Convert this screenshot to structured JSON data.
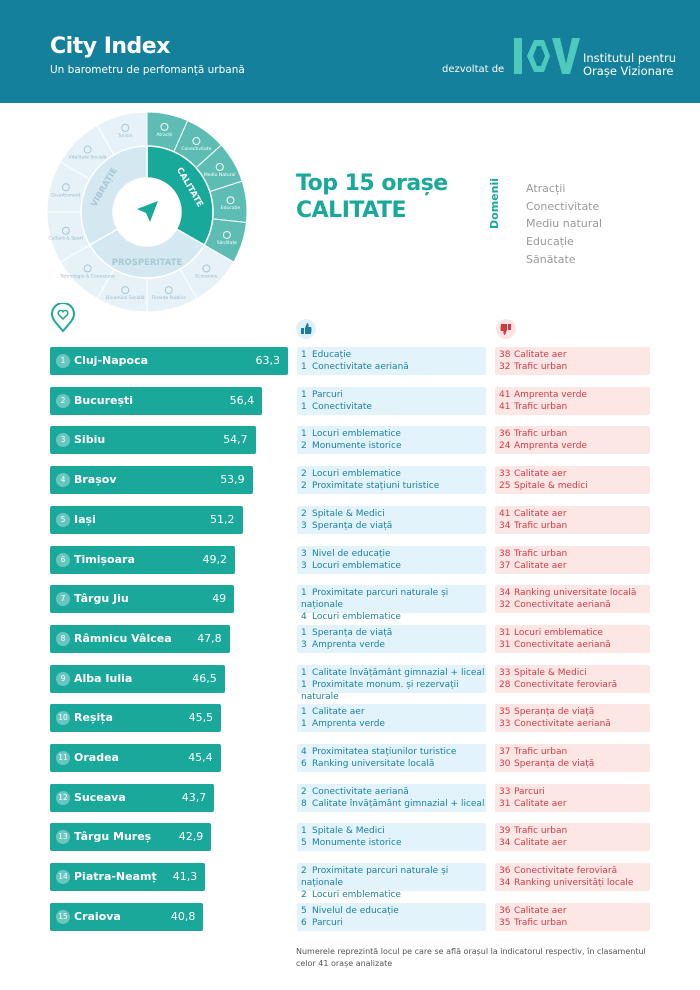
{
  "header": {
    "title": "City Index",
    "subtitle": "Un barometru de perfomanță urbană",
    "by": "dezvoltat de",
    "logo_text": "IOV",
    "institute_line1": "Institutul pentru",
    "institute_line2": "Orașe Vizionare"
  },
  "colors": {
    "header": "#14809b",
    "accent": "#1aa89b",
    "positive_bg": "#e3f3fc",
    "negative_bg": "#fde7e5",
    "positive_text": "#1a7f9f",
    "negative_text": "#d03a48"
  },
  "wheel": {
    "pillars": [
      {
        "label": "CALITATE",
        "active": true
      },
      {
        "label": "PROSPERITATE",
        "active": false
      },
      {
        "label": "VIBRAȚIE",
        "active": false
      }
    ],
    "segments": [
      {
        "label": "Atracții",
        "pillar": 0
      },
      {
        "label": "Conectivitate",
        "pillar": 0
      },
      {
        "label": "Mediu Natural",
        "pillar": 0
      },
      {
        "label": "Educație",
        "pillar": 0
      },
      {
        "label": "Sănătate",
        "pillar": 0
      },
      {
        "label": "Economie",
        "pillar": 1
      },
      {
        "label": "Finanțe Publice",
        "pillar": 1
      },
      {
        "label": "Dinamică Socială",
        "pillar": 1
      },
      {
        "label": "Tehnologie & Conexiune",
        "pillar": 1
      },
      {
        "label": "Cultură & Sport",
        "pillar": 2
      },
      {
        "label": "Divertisment",
        "pillar": 2
      },
      {
        "label": "Vitalitate Socială",
        "pillar": 2
      },
      {
        "label": "Turism",
        "pillar": 2
      }
    ],
    "center_icon": "navigation-arrow-icon"
  },
  "title_line1": "Top 15 orașe",
  "title_line2": "CALITATE",
  "domains": {
    "label": "Domenii",
    "items": [
      "Atracții",
      "Conectivitate",
      "Mediu natural",
      "Educație",
      "Sănătate"
    ]
  },
  "icons": {
    "pin": "heart-pin-icon",
    "positive": "thumbs-up-icon",
    "negative": "thumbs-down-icon"
  },
  "cities": [
    {
      "rank": "1",
      "name": "Cluj-Napoca",
      "score": "63,3",
      "value": 63.3,
      "pos": [
        [
          "1",
          "Educație"
        ],
        [
          "1",
          "Conectivitate aeriană"
        ]
      ],
      "neg": [
        [
          "38",
          "Calitate aer"
        ],
        [
          "32",
          "Trafic urban"
        ]
      ]
    },
    {
      "rank": "2",
      "name": "București",
      "score": "56,4",
      "value": 56.4,
      "pos": [
        [
          "1",
          "Parcuri"
        ],
        [
          "1",
          "Conectivitate"
        ]
      ],
      "neg": [
        [
          "41",
          "Amprenta verde"
        ],
        [
          "41",
          "Trafic urban"
        ]
      ]
    },
    {
      "rank": "3",
      "name": "Sibiu",
      "score": "54,7",
      "value": 54.7,
      "pos": [
        [
          "1",
          "Locuri emblematice"
        ],
        [
          "2",
          "Monumente istorice"
        ]
      ],
      "neg": [
        [
          "36",
          "Trafic urban"
        ],
        [
          "24",
          "Amprenta verde"
        ]
      ]
    },
    {
      "rank": "4",
      "name": "Brașov",
      "score": "53,9",
      "value": 53.9,
      "pos": [
        [
          "2",
          "Locuri emblematice"
        ],
        [
          "2",
          "Proximitate stațiuni turistice"
        ]
      ],
      "neg": [
        [
          "33",
          "Calitate aer"
        ],
        [
          "25",
          "Spitale & medici"
        ]
      ]
    },
    {
      "rank": "5",
      "name": "Iași",
      "score": "51,2",
      "value": 51.2,
      "pos": [
        [
          "2",
          "Spitale & Medici"
        ],
        [
          "3",
          "Speranța de viață"
        ]
      ],
      "neg": [
        [
          "41",
          "Calitate aer"
        ],
        [
          "34",
          "Trafic urban"
        ]
      ]
    },
    {
      "rank": "6",
      "name": "Timișoara",
      "score": "49,2",
      "value": 49.2,
      "pos": [
        [
          "3",
          "Nivel de educație"
        ],
        [
          "3",
          "Locuri emblematice"
        ]
      ],
      "neg": [
        [
          "38",
          "Trafic urban"
        ],
        [
          "37",
          "Calitate aer"
        ]
      ]
    },
    {
      "rank": "7",
      "name": "Târgu Jiu",
      "score": "49",
      "value": 49,
      "pos": [
        [
          "1",
          "Proximitate parcuri naturale și naționale"
        ],
        [
          "4",
          "Locuri emblematice"
        ]
      ],
      "neg": [
        [
          "34",
          "Ranking universitate locală"
        ],
        [
          "32",
          "Conectivitate aeriană"
        ]
      ]
    },
    {
      "rank": "8",
      "name": "Râmnicu Vâlcea",
      "score": "47,8",
      "value": 47.8,
      "pos": [
        [
          "1",
          "Speranța de viață"
        ],
        [
          "3",
          "Amprenta verde"
        ]
      ],
      "neg": [
        [
          "31",
          "Locuri emblematice"
        ],
        [
          "31",
          "Conectivitate aeriană"
        ]
      ]
    },
    {
      "rank": "9",
      "name": "Alba Iulia",
      "score": "46,5",
      "value": 46.5,
      "pos": [
        [
          "1",
          "Calitate învățământ gimnazial + liceal"
        ],
        [
          "1",
          "Proximitate monum. și rezervații naturale"
        ]
      ],
      "neg": [
        [
          "33",
          "Spitale & Medici"
        ],
        [
          "28",
          "Conectivitate feroviară"
        ]
      ]
    },
    {
      "rank": "10",
      "name": "Reșița",
      "score": "45,5",
      "value": 45.5,
      "pos": [
        [
          "1",
          "Calitate aer"
        ],
        [
          "1",
          "Amprenta verde"
        ]
      ],
      "neg": [
        [
          "35",
          "Speranța de viață"
        ],
        [
          "33",
          "Conectivitate aeriană"
        ]
      ]
    },
    {
      "rank": "11",
      "name": "Oradea",
      "score": "45,4",
      "value": 45.4,
      "pos": [
        [
          "4",
          "Proximitatea stațiunilor turistice"
        ],
        [
          "6",
          "Ranking universitate locală"
        ]
      ],
      "neg": [
        [
          "37",
          "Trafic urban"
        ],
        [
          "30",
          "Speranța de viață"
        ]
      ]
    },
    {
      "rank": "12",
      "name": "Suceava",
      "score": "43,7",
      "value": 43.7,
      "pos": [
        [
          "2",
          "Conectivitate aeriană"
        ],
        [
          "8",
          "Calitate învățământ gimnazial + liceal"
        ]
      ],
      "neg": [
        [
          "33",
          "Parcuri"
        ],
        [
          "31",
          "Calitate aer"
        ]
      ]
    },
    {
      "rank": "13",
      "name": "Târgu Mureș",
      "score": "42,9",
      "value": 42.9,
      "pos": [
        [
          "1",
          "Spitale & Medici"
        ],
        [
          "5",
          "Monumente istorice"
        ]
      ],
      "neg": [
        [
          "39",
          "Trafic urban"
        ],
        [
          "34",
          "Calitate aer"
        ]
      ]
    },
    {
      "rank": "14",
      "name": "Piatra-Neamț",
      "score": "41,3",
      "value": 41.3,
      "pos": [
        [
          "2",
          "Proximitate parcuri naturale și naționale"
        ],
        [
          "2",
          "Locuri emblematice"
        ]
      ],
      "neg": [
        [
          "36",
          "Conectivitate feroviară"
        ],
        [
          "34",
          "Ranking universități locale"
        ]
      ]
    },
    {
      "rank": "15",
      "name": "Craiova",
      "score": "40,8",
      "value": 40.8,
      "pos": [
        [
          "5",
          "Nivelul de educație"
        ],
        [
          "6",
          "Parcuri"
        ]
      ],
      "neg": [
        [
          "36",
          "Calitate aer"
        ],
        [
          "35",
          "Trafic urban"
        ]
      ]
    }
  ],
  "footnote": "Numerele reprezintă locul pe care se află orașul la indicatorul respectiv, în clasamentul celor 41 orașe analizate"
}
